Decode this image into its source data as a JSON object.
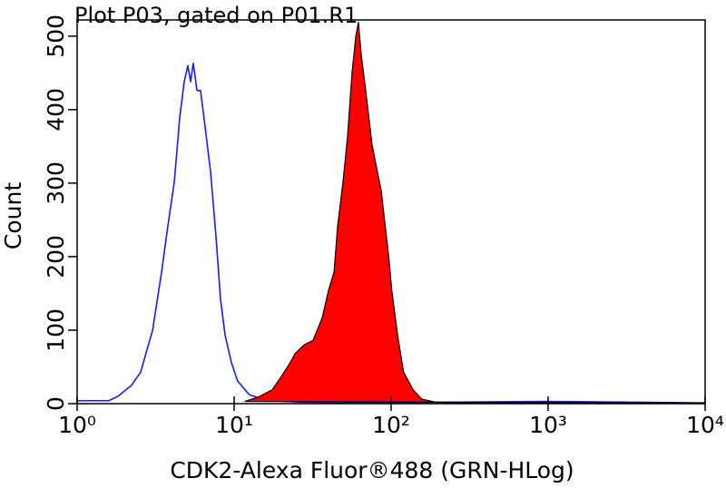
{
  "chart_data": {
    "type": "line",
    "title": "Plot P03, gated on P01.R1",
    "x_label": "CDK2-Alexa Fluor®488 (GRN-HLog)",
    "y_label": "Count",
    "xscale": "log",
    "xlim": [
      1,
      10000
    ],
    "xticks": [
      {
        "value": 1,
        "label": "10⁰"
      },
      {
        "value": 10,
        "label": "10¹"
      },
      {
        "value": 100,
        "label": "10²"
      },
      {
        "value": 1000,
        "label": "10³"
      },
      {
        "value": 10000,
        "label": "10⁴"
      }
    ],
    "ylim": [
      0,
      522
    ],
    "yticks": [
      0,
      100,
      200,
      300,
      400,
      500
    ],
    "series": [
      {
        "color": "#1a1aff",
        "filled": false,
        "x": [
          1.0,
          1.22,
          1.59,
          1.82,
          2.22,
          2.54,
          2.79,
          3.02,
          3.18,
          3.45,
          3.78,
          4.16,
          4.5,
          4.81,
          5.07,
          5.28,
          5.49,
          5.8,
          6.11,
          6.53,
          7.08,
          7.66,
          8.19,
          8.76,
          9.61,
          10.5,
          12.5,
          15.3,
          17.5,
          26.1,
          66.2,
          250,
          948,
          3590,
          10000
        ],
        "values": [
          4,
          4,
          4,
          10,
          25,
          43,
          74,
          99,
          130,
          179,
          241,
          302,
          389,
          438,
          460,
          438,
          463,
          426,
          426,
          377,
          315,
          228,
          142,
          93,
          56,
          31,
          12,
          6,
          4,
          2,
          1,
          2,
          3,
          2,
          1
        ]
      },
      {
        "color": "#ff0000",
        "filled": true,
        "x": [
          11.7,
          14.3,
          17.5,
          20.0,
          22.8,
          24.4,
          27.9,
          31.8,
          36.4,
          39.9,
          43.3,
          45.6,
          49.4,
          52.8,
          56.4,
          59.6,
          61.9,
          64.5,
          68.9,
          75.6,
          86.4,
          96.1,
          101,
          110,
          120,
          138,
          157,
          192,
          250,
          10000
        ],
        "values": [
          3,
          9,
          19,
          37,
          56,
          68,
          80,
          86,
          117,
          154,
          179,
          241,
          302,
          364,
          451,
          500,
          519,
          475,
          426,
          352,
          290,
          204,
          154,
          93,
          43,
          19,
          6,
          2,
          1,
          1
        ]
      }
    ]
  }
}
